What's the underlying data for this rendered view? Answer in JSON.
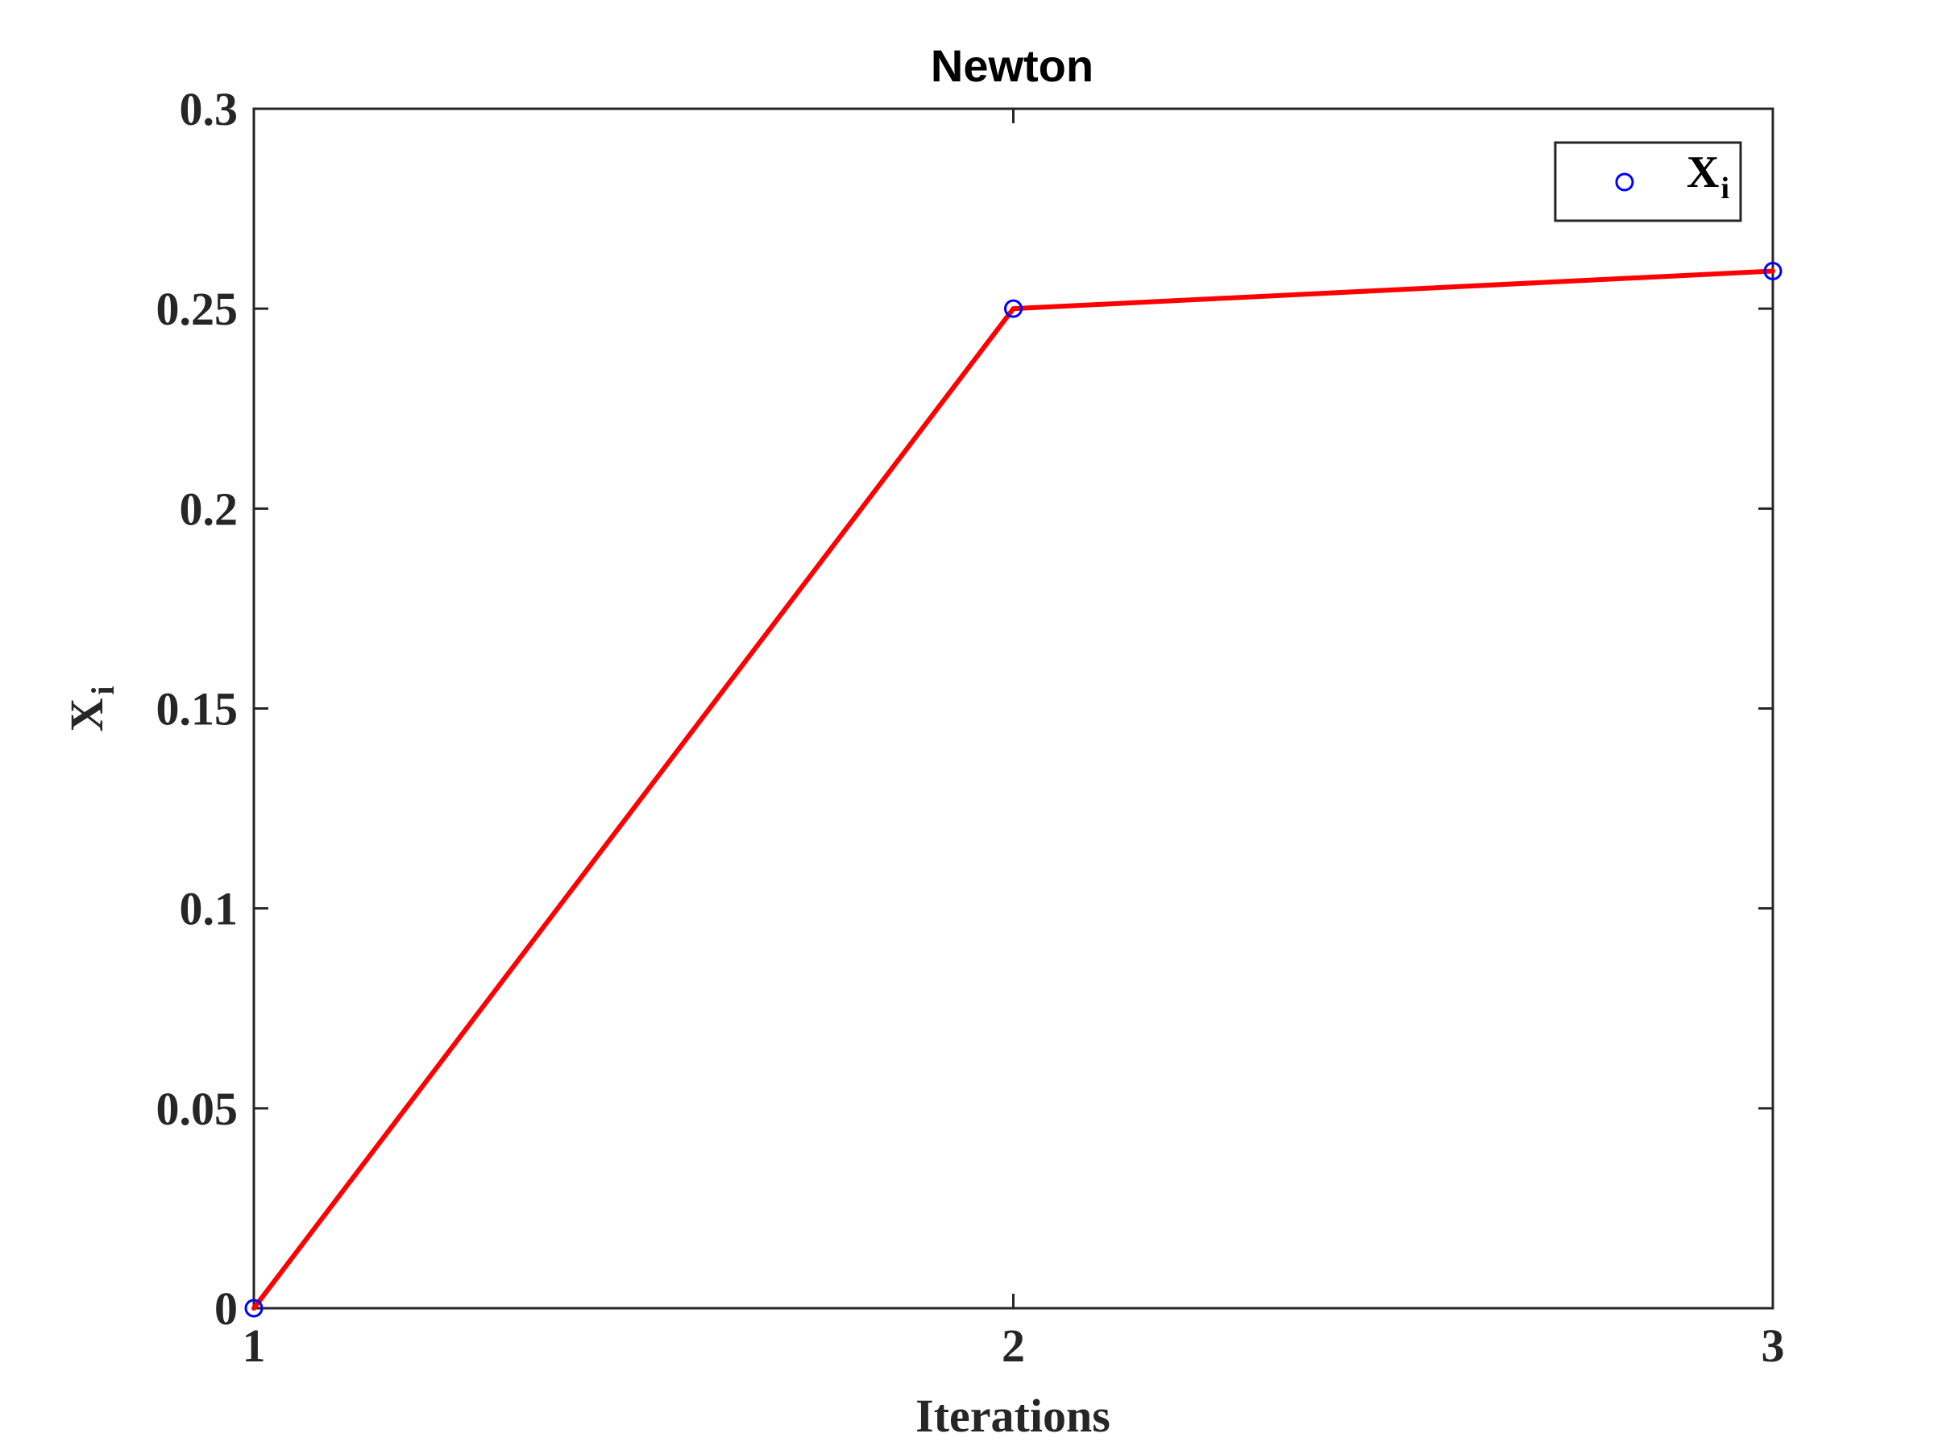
{
  "chart_data": {
    "type": "line",
    "title": "Newton",
    "xlabel": "Iterations",
    "ylabel": "X",
    "ylabel_subscript": "i",
    "x": [
      1,
      2,
      3
    ],
    "xlim": [
      1,
      3
    ],
    "ylim": [
      0,
      0.3
    ],
    "xticks": [
      1,
      2,
      3
    ],
    "xtick_labels": [
      "1",
      "2",
      "3"
    ],
    "yticks": [
      0,
      0.05,
      0.1,
      0.15,
      0.2,
      0.25,
      0.3
    ],
    "ytick_labels": [
      "0",
      "0.05",
      "0.1",
      "0.15",
      "0.2",
      "0.25",
      "0.3"
    ],
    "grid": false,
    "legend_position": "top-right",
    "series": [
      {
        "name": "X",
        "name_subscript": "i",
        "values": [
          0,
          0.25,
          0.2594
        ],
        "line_color": "#ff0000",
        "marker": "circle",
        "marker_color": "#0000ff"
      }
    ]
  }
}
